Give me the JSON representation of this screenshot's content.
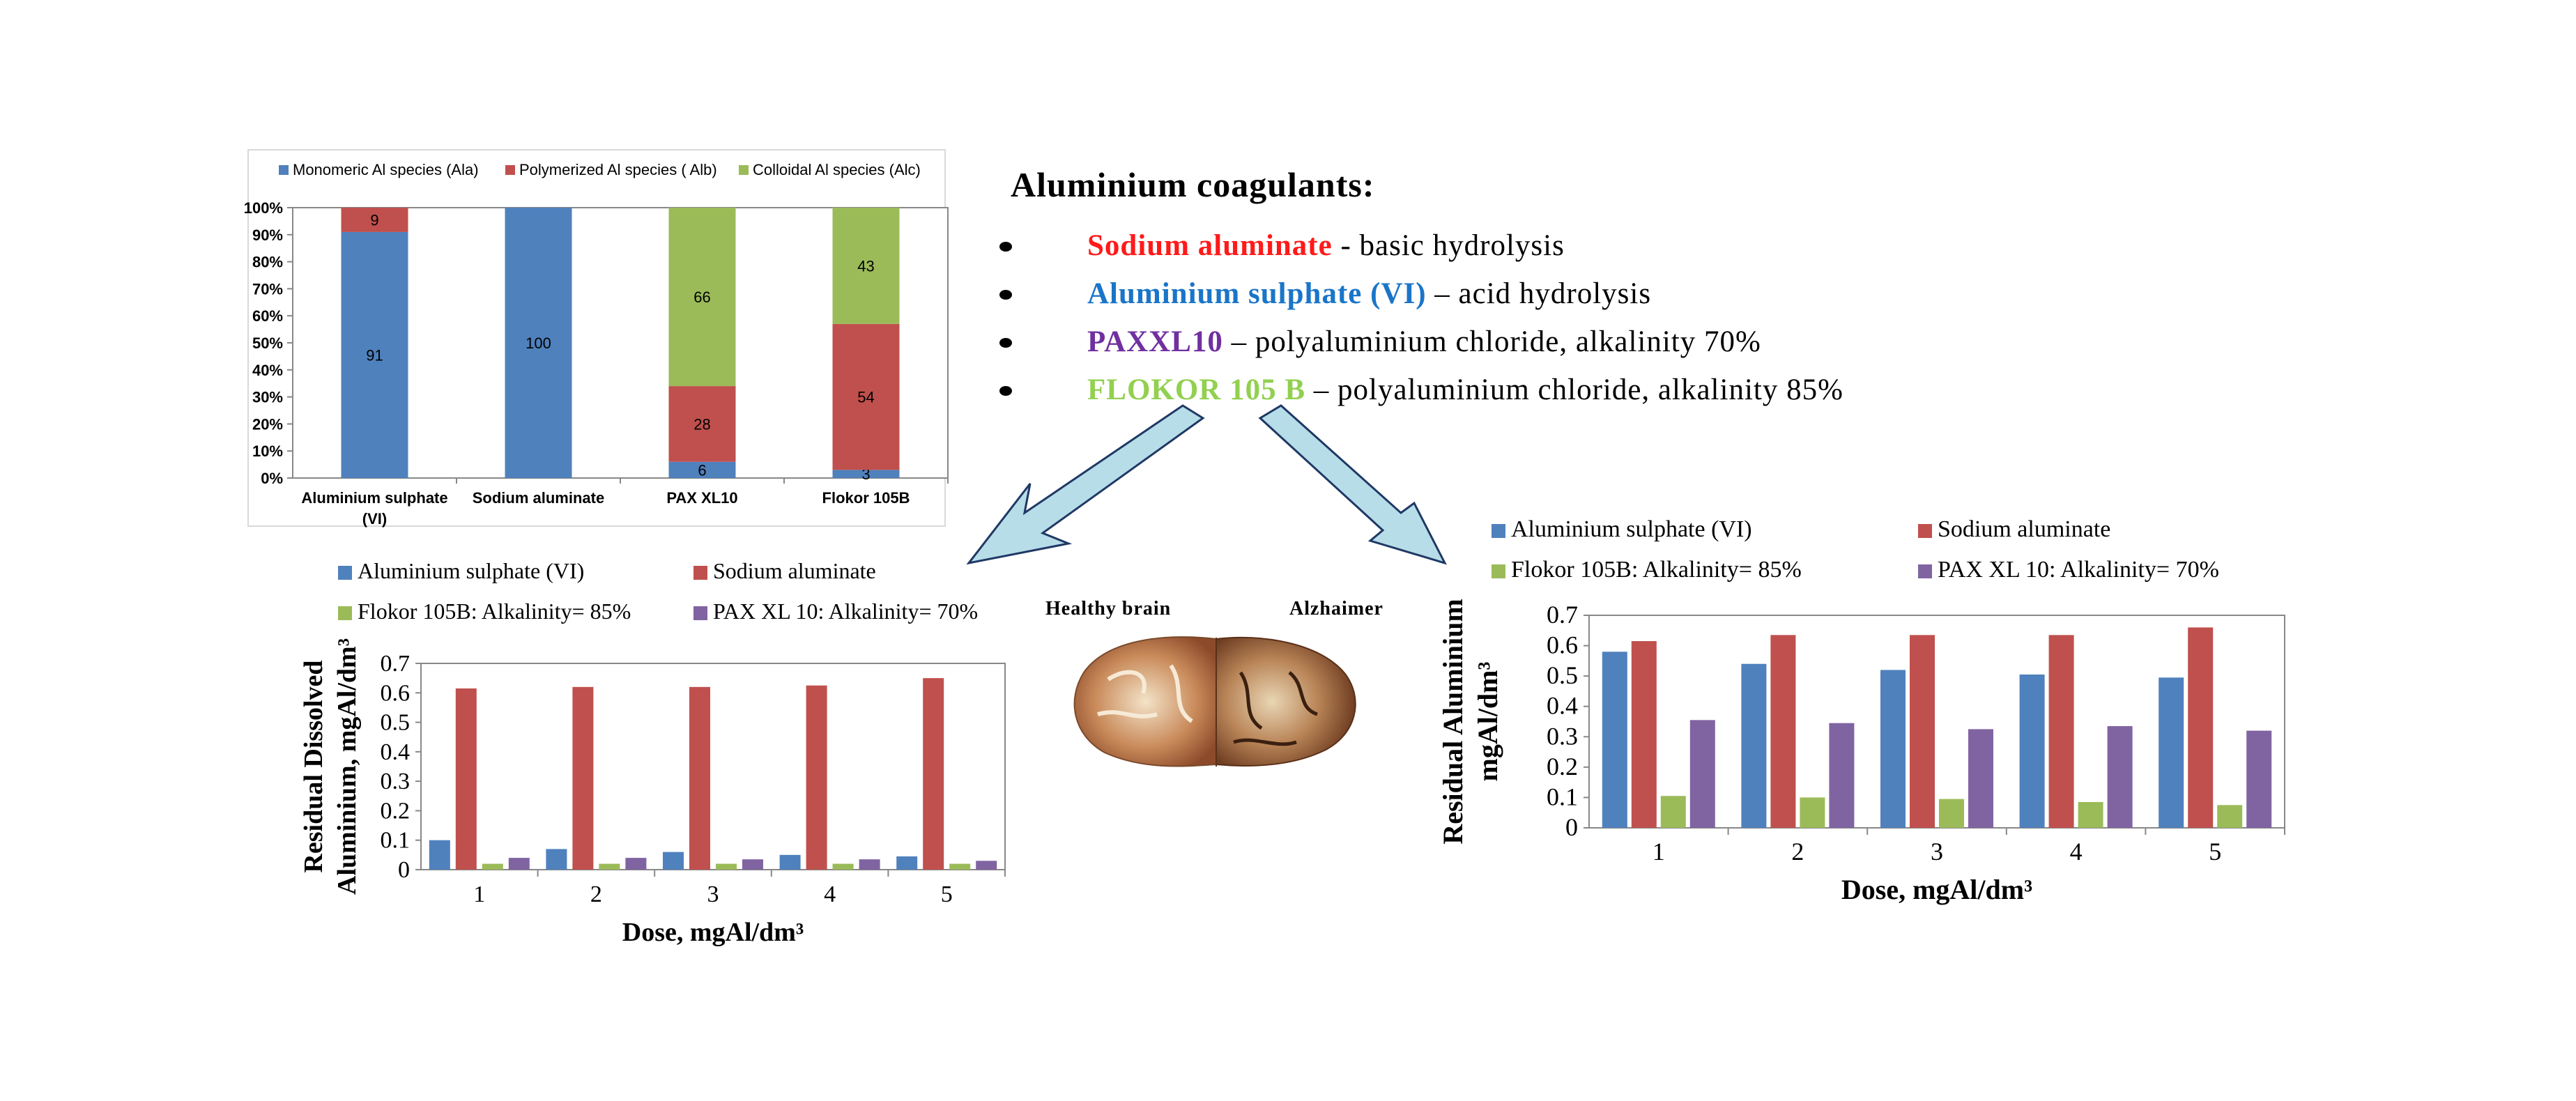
{
  "headline": "Aluminium coagulants:",
  "bullets": [
    {
      "name": "Sodium aluminate",
      "desc": " - basic hydrolysis",
      "color": "#ff1a1a"
    },
    {
      "name": "Aluminium sulphate (VI)",
      "desc": " – acid hydrolysis",
      "color": "#1a75c8"
    },
    {
      "name": "PAXXL10",
      "desc": " – polyaluminium chloride, alkalinity 70%",
      "color": "#7030a0"
    },
    {
      "name": "FLOKOR 105 B",
      "desc": " –  polyaluminium chloride, alkalinity 85%",
      "color": "#92d050"
    }
  ],
  "brain": {
    "left_label": "Healthy brain",
    "right_label": "Alzhaimer"
  },
  "colors": {
    "blue": "#4f81bd",
    "red": "#c0504d",
    "green": "#9bbb59",
    "purple": "#8064a2",
    "arrow_fill": "#b7dde8",
    "arrow_stroke": "#1f3864"
  },
  "chart_data": [
    {
      "type": "bar",
      "stacked": true,
      "normalized": true,
      "categories": [
        "Aluminium sulphate (VI)",
        "Sodium aluminate",
        "PAX XL10",
        "Flokor 105B"
      ],
      "series": [
        {
          "name": "Monomeric Al species  (Ala)",
          "values": [
            91,
            100,
            6,
            3
          ],
          "labels": [
            "91",
            "100",
            "6",
            "3"
          ]
        },
        {
          "name": "Polymerized Al species ( Alb)",
          "values": [
            9,
            0,
            28,
            54
          ],
          "labels": [
            "9",
            "",
            "28",
            "54"
          ]
        },
        {
          "name": "Colloidal Al species  (Alc)",
          "values": [
            0,
            0,
            66,
            43
          ],
          "labels": [
            "",
            "",
            "66",
            "43"
          ]
        }
      ],
      "yticks": [
        "0%",
        "10%",
        "20%",
        "30%",
        "40%",
        "50%",
        "60%",
        "70%",
        "80%",
        "90%",
        "100%"
      ],
      "ylim": [
        0,
        100
      ],
      "legend_position": "top",
      "grid": false
    },
    {
      "type": "bar",
      "categories": [
        "1",
        "2",
        "3",
        "4",
        "5"
      ],
      "series": [
        {
          "name": "Aluminium sulphate (VI)",
          "values": [
            0.1,
            0.07,
            0.06,
            0.05,
            0.045
          ]
        },
        {
          "name": "Sodium aluminate",
          "values": [
            0.615,
            0.62,
            0.62,
            0.625,
            0.65
          ]
        },
        {
          "name": "Flokor 105B: Alkalinity= 85%",
          "values": [
            0.02,
            0.02,
            0.02,
            0.02,
            0.02
          ]
        },
        {
          "name": "PAX XL 10: Alkalinity= 70%",
          "values": [
            0.04,
            0.04,
            0.035,
            0.035,
            0.03
          ]
        }
      ],
      "yticks": [
        "0",
        "0.1",
        "0.2",
        "0.3",
        "0.4",
        "0.5",
        "0.6",
        "0.7"
      ],
      "ylim": [
        0,
        0.7
      ],
      "xlabel": "Dose, mgAl/dm³",
      "ylabel_lines": [
        "Residual Dissolved",
        "Aluminium, mgAl/dm³"
      ],
      "legend_position": "top",
      "grid": false
    },
    {
      "type": "bar",
      "categories": [
        "1",
        "2",
        "3",
        "4",
        "5"
      ],
      "series": [
        {
          "name": "Aluminium sulphate (VI)",
          "values": [
            0.58,
            0.54,
            0.52,
            0.505,
            0.495
          ]
        },
        {
          "name": "Sodium aluminate",
          "values": [
            0.615,
            0.635,
            0.635,
            0.635,
            0.66
          ]
        },
        {
          "name": "Flokor 105B: Alkalinity= 85%",
          "values": [
            0.105,
            0.1,
            0.095,
            0.085,
            0.075
          ]
        },
        {
          "name": "PAX XL 10: Alkalinity= 70%",
          "values": [
            0.355,
            0.345,
            0.325,
            0.335,
            0.32
          ]
        }
      ],
      "yticks": [
        "0",
        "0.1",
        "0.2",
        "0.3",
        "0.4",
        "0.5",
        "0.6",
        "0.7"
      ],
      "ylim": [
        0,
        0.7
      ],
      "xlabel": "Dose, mgAl/dm³",
      "ylabel_lines": [
        "Residual  Aluminium",
        "mgAl/dm³"
      ],
      "legend_position": "top",
      "grid": false
    }
  ]
}
